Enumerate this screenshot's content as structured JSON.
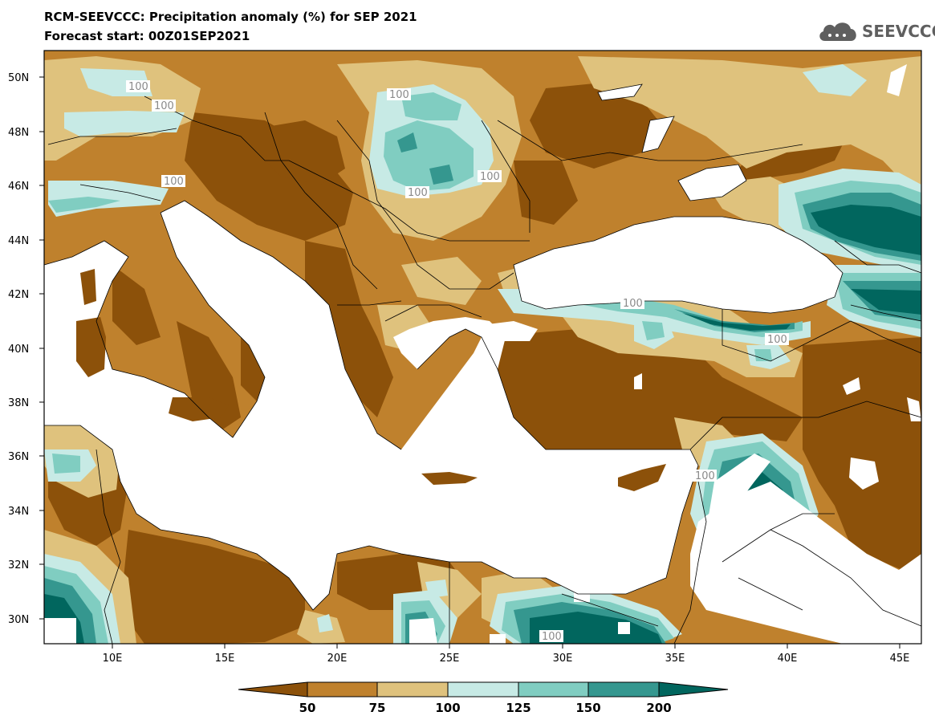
{
  "header": {
    "title": "RCM-SEEVCCC: Precipitation anomaly (%) for SEP 2021",
    "subtitle": "Forecast start: 00Z01SEP2021"
  },
  "logo": {
    "text": "SEEVCCC",
    "icon": "cloud-logo-icon",
    "color": "#5f5f5f"
  },
  "map": {
    "lat_ticks": [
      "50N",
      "48N",
      "46N",
      "44N",
      "42N",
      "40N",
      "38N",
      "36N",
      "34N",
      "32N",
      "30N"
    ],
    "lon_ticks": [
      "10E",
      "15E",
      "20E",
      "25E",
      "30E",
      "35E",
      "40E",
      "45E"
    ],
    "contour_label": "100"
  },
  "colorbar": {
    "labels": [
      "50",
      "75",
      "100",
      "125",
      "150",
      "200"
    ],
    "colors": [
      "#8c510a",
      "#bf812d",
      "#dfc27d",
      "#c7eae5",
      "#80cdc1",
      "#35978f",
      "#01665e"
    ]
  }
}
